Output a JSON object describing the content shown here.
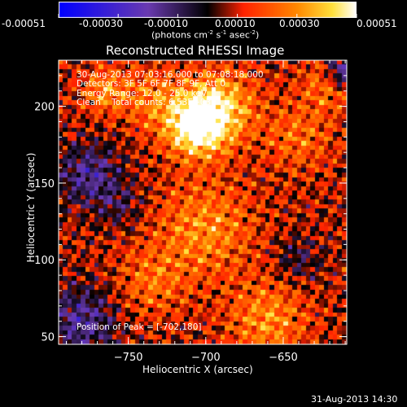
{
  "colorbar": {
    "ticks": [
      "-0.00051",
      "-0.00030",
      "-0.00010",
      "0.00010",
      "0.00030",
      "0.00051"
    ],
    "units": "(photons cm",
    "units_exp1": "-2",
    "units_mid": " s",
    "units_exp2": "-1",
    "units_end": " asec",
    "units_exp3": "-2",
    "units_close": ")"
  },
  "colors": {
    "cbar_min": "#0000ff",
    "cbar_low": "#6a3ab0",
    "cbar_mid": "#000000",
    "cbar_red": "#ff2200",
    "cbar_orange": "#ff8800",
    "cbar_max": "#ffffff"
  },
  "chart_data": {
    "type": "heatmap",
    "title": "Reconstructed RHESSI Image",
    "xlabel": "Heliocentric X (arcsec)",
    "ylabel": "Heliocentric Y (arcsec)",
    "xlim": [
      -795,
      -609
    ],
    "ylim": [
      45,
      230
    ],
    "xticks": [
      -750,
      -700,
      -650
    ],
    "yticks": [
      50,
      100,
      150,
      200
    ],
    "zlim": [
      -0.00051,
      0.00051
    ],
    "peak": [
      -702,
      180
    ],
    "annotations": [
      "30-Aug-2013 07:03:16.000 to 07:08:18.000",
      "Detectors: 3F 5F 6F 7F 8F 9F, Att 0",
      "Energy Range: 12.0 - 25.0 keV",
      "Clean    Total counts: 6.53E+03"
    ],
    "peak_label": "Position of Peak = [-702,180]",
    "timestamp": "31-Aug-2013 14:30",
    "sources": [
      {
        "x": -706,
        "y": 187,
        "amp": 0.00048,
        "sigma": 14
      },
      {
        "x": -690,
        "y": 200,
        "amp": 0.0003,
        "sigma": 16
      },
      {
        "x": -735,
        "y": 205,
        "amp": 0.00018,
        "sigma": 14
      },
      {
        "x": -765,
        "y": 210,
        "amp": 0.00022,
        "sigma": 10
      },
      {
        "x": -640,
        "y": 180,
        "amp": 0.00016,
        "sigma": 16
      },
      {
        "x": -620,
        "y": 215,
        "amp": 0.0002,
        "sigma": 12
      },
      {
        "x": -700,
        "y": 120,
        "amp": 0.00022,
        "sigma": 22
      },
      {
        "x": -660,
        "y": 60,
        "amp": 0.00022,
        "sigma": 18
      },
      {
        "x": -735,
        "y": 85,
        "amp": 0.00016,
        "sigma": 16
      },
      {
        "x": -775,
        "y": 155,
        "amp": -0.00025,
        "sigma": 14
      },
      {
        "x": -780,
        "y": 60,
        "amp": -0.00025,
        "sigma": 16
      },
      {
        "x": -612,
        "y": 222,
        "amp": -0.00035,
        "sigma": 8
      },
      {
        "x": -640,
        "y": 100,
        "amp": -0.00014,
        "sigma": 10
      },
      {
        "x": -755,
        "y": 135,
        "amp": -0.00012,
        "sigma": 10
      }
    ]
  }
}
